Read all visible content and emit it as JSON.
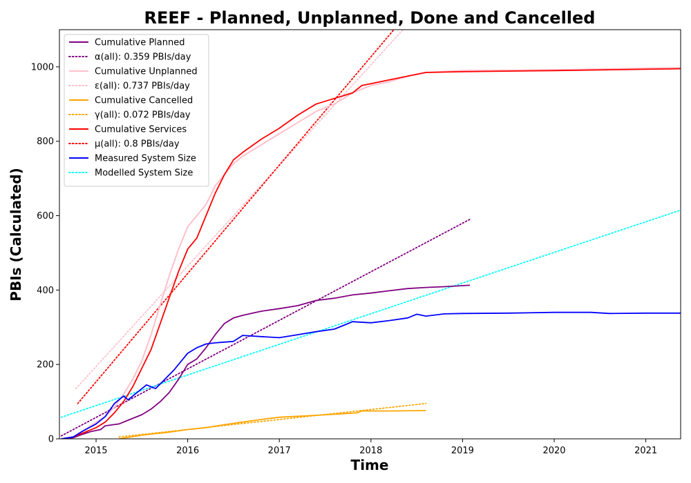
{
  "chart_data": {
    "type": "line",
    "title": "REEF - Planned, Unplanned, Done  and Cancelled",
    "xlabel": "Time",
    "ylabel": "PBIs (Calculated)",
    "xlim": [
      2014.6,
      2021.38
    ],
    "ylim": [
      0,
      1100
    ],
    "x_ticks": [
      2015,
      2016,
      2017,
      2018,
      2019,
      2020,
      2021
    ],
    "y_ticks": [
      0,
      200,
      400,
      600,
      800,
      1000
    ],
    "legend_position": "top-left",
    "grid": false,
    "series": [
      {
        "name": "Cumulative Planned",
        "color": "#800080",
        "style": "solid",
        "points": [
          [
            2014.62,
            0
          ],
          [
            2014.75,
            3
          ],
          [
            2014.85,
            12
          ],
          [
            2014.95,
            20
          ],
          [
            2015.05,
            25
          ],
          [
            2015.1,
            35
          ],
          [
            2015.25,
            40
          ],
          [
            2015.35,
            50
          ],
          [
            2015.5,
            65
          ],
          [
            2015.6,
            80
          ],
          [
            2015.7,
            100
          ],
          [
            2015.8,
            125
          ],
          [
            2015.9,
            160
          ],
          [
            2016.0,
            200
          ],
          [
            2016.1,
            215
          ],
          [
            2016.2,
            245
          ],
          [
            2016.3,
            280
          ],
          [
            2016.4,
            310
          ],
          [
            2016.5,
            325
          ],
          [
            2016.6,
            332
          ],
          [
            2016.8,
            343
          ],
          [
            2017.0,
            350
          ],
          [
            2017.2,
            358
          ],
          [
            2017.4,
            372
          ],
          [
            2017.6,
            378
          ],
          [
            2017.8,
            387
          ],
          [
            2018.0,
            392
          ],
          [
            2018.2,
            398
          ],
          [
            2018.4,
            404
          ],
          [
            2018.6,
            407
          ],
          [
            2018.8,
            409
          ],
          [
            2019.08,
            413
          ]
        ]
      },
      {
        "name": "α(all): 0.359 PBIs/day",
        "color": "#800080",
        "style": "dotted",
        "points": [
          [
            2014.62,
            8
          ],
          [
            2019.08,
            590
          ]
        ]
      },
      {
        "name": "Cumulative Unplanned",
        "color": "#ffc0cb",
        "style": "solid",
        "points": [
          [
            2014.62,
            0
          ],
          [
            2014.75,
            5
          ],
          [
            2014.85,
            20
          ],
          [
            2015.0,
            45
          ],
          [
            2015.1,
            60
          ],
          [
            2015.2,
            85
          ],
          [
            2015.3,
            120
          ],
          [
            2015.4,
            160
          ],
          [
            2015.5,
            210
          ],
          [
            2015.6,
            280
          ],
          [
            2015.7,
            360
          ],
          [
            2015.8,
            440
          ],
          [
            2015.9,
            510
          ],
          [
            2016.0,
            570
          ],
          [
            2016.1,
            600
          ],
          [
            2016.2,
            630
          ],
          [
            2016.3,
            680
          ],
          [
            2016.4,
            710
          ],
          [
            2016.5,
            740
          ],
          [
            2016.6,
            760
          ],
          [
            2016.8,
            790
          ],
          [
            2017.0,
            820
          ],
          [
            2017.2,
            850
          ],
          [
            2017.4,
            880
          ],
          [
            2017.6,
            900
          ],
          [
            2017.8,
            930
          ],
          [
            2018.0,
            950
          ],
          [
            2018.2,
            960
          ],
          [
            2018.4,
            975
          ],
          [
            2018.6,
            985
          ],
          [
            2019.0,
            990
          ],
          [
            2020.0,
            992
          ],
          [
            2021.38,
            998
          ]
        ]
      },
      {
        "name": "ε(all): 0.737 PBIs/day",
        "color": "#ffc0cb",
        "style": "dotted",
        "points": [
          [
            2014.78,
            135
          ],
          [
            2018.35,
            1100
          ]
        ]
      },
      {
        "name": "Cumulative Cancelled",
        "color": "#ffa500",
        "style": "solid",
        "points": [
          [
            2015.25,
            0
          ],
          [
            2015.5,
            10
          ],
          [
            2015.8,
            18
          ],
          [
            2016.0,
            25
          ],
          [
            2016.2,
            30
          ],
          [
            2016.4,
            38
          ],
          [
            2016.6,
            45
          ],
          [
            2016.8,
            52
          ],
          [
            2017.0,
            58
          ],
          [
            2017.3,
            62
          ],
          [
            2017.6,
            66
          ],
          [
            2017.85,
            70
          ],
          [
            2017.9,
            75
          ],
          [
            2018.2,
            75
          ],
          [
            2018.6,
            76
          ]
        ]
      },
      {
        "name": "γ(all): 0.072 PBIs/day",
        "color": "#ffa500",
        "style": "dotted",
        "points": [
          [
            2015.25,
            5
          ],
          [
            2018.6,
            95
          ]
        ]
      },
      {
        "name": "Cumulative Services",
        "color": "#ff0000",
        "style": "solid",
        "points": [
          [
            2014.62,
            0
          ],
          [
            2014.75,
            5
          ],
          [
            2014.85,
            15
          ],
          [
            2015.0,
            30
          ],
          [
            2015.1,
            45
          ],
          [
            2015.2,
            70
          ],
          [
            2015.3,
            100
          ],
          [
            2015.4,
            140
          ],
          [
            2015.5,
            190
          ],
          [
            2015.6,
            240
          ],
          [
            2015.7,
            310
          ],
          [
            2015.8,
            380
          ],
          [
            2015.9,
            450
          ],
          [
            2016.0,
            510
          ],
          [
            2016.1,
            540
          ],
          [
            2016.2,
            600
          ],
          [
            2016.3,
            660
          ],
          [
            2016.4,
            710
          ],
          [
            2016.5,
            750
          ],
          [
            2016.6,
            770
          ],
          [
            2016.8,
            805
          ],
          [
            2017.0,
            835
          ],
          [
            2017.2,
            870
          ],
          [
            2017.4,
            900
          ],
          [
            2017.6,
            915
          ],
          [
            2017.8,
            930
          ],
          [
            2017.9,
            950
          ],
          [
            2018.0,
            955
          ],
          [
            2018.2,
            965
          ],
          [
            2018.4,
            975
          ],
          [
            2018.6,
            985
          ],
          [
            2019.0,
            987
          ],
          [
            2020.0,
            990
          ],
          [
            2021.38,
            995
          ]
        ]
      },
      {
        "name": "μ(all): 0.8 PBIs/day",
        "color": "#ff0000",
        "style": "dotted",
        "points": [
          [
            2014.8,
            95
          ],
          [
            2018.25,
            1100
          ]
        ]
      },
      {
        "name": "Measured System Size",
        "color": "#0000ff",
        "style": "solid",
        "points": [
          [
            2014.62,
            0
          ],
          [
            2014.75,
            5
          ],
          [
            2014.85,
            20
          ],
          [
            2015.0,
            40
          ],
          [
            2015.1,
            60
          ],
          [
            2015.2,
            95
          ],
          [
            2015.3,
            115
          ],
          [
            2015.35,
            105
          ],
          [
            2015.45,
            125
          ],
          [
            2015.55,
            145
          ],
          [
            2015.65,
            135
          ],
          [
            2015.75,
            160
          ],
          [
            2015.85,
            185
          ],
          [
            2015.95,
            215
          ],
          [
            2016.0,
            230
          ],
          [
            2016.1,
            245
          ],
          [
            2016.2,
            255
          ],
          [
            2016.3,
            258
          ],
          [
            2016.4,
            260
          ],
          [
            2016.5,
            262
          ],
          [
            2016.6,
            278
          ],
          [
            2016.8,
            275
          ],
          [
            2017.0,
            272
          ],
          [
            2017.2,
            280
          ],
          [
            2017.4,
            288
          ],
          [
            2017.6,
            295
          ],
          [
            2017.8,
            315
          ],
          [
            2018.0,
            312
          ],
          [
            2018.2,
            318
          ],
          [
            2018.4,
            325
          ],
          [
            2018.5,
            335
          ],
          [
            2018.6,
            330
          ],
          [
            2018.8,
            336
          ],
          [
            2019.0,
            337
          ],
          [
            2019.5,
            338
          ],
          [
            2020.0,
            340
          ],
          [
            2020.4,
            340
          ],
          [
            2020.6,
            337
          ],
          [
            2021.0,
            338
          ],
          [
            2021.38,
            338
          ]
        ]
      },
      {
        "name": "Modelled System Size",
        "color": "#00ffff",
        "style": "dotted",
        "points": [
          [
            2014.62,
            58
          ],
          [
            2021.38,
            615
          ]
        ]
      }
    ]
  }
}
